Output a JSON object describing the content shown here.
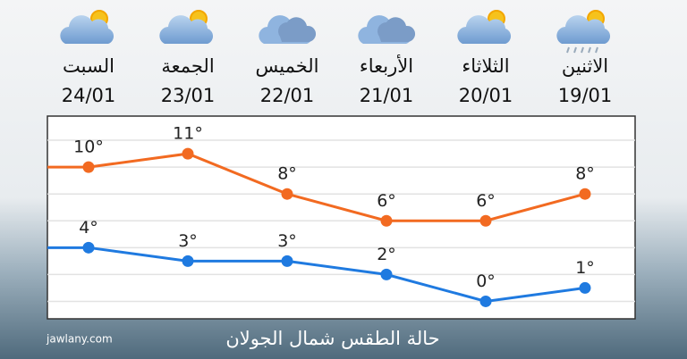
{
  "chart_data": {
    "type": "line",
    "title": "حالة الطقس شمال الجولان",
    "source": "jawlany.com",
    "categories": [
      "الاثنين",
      "الثلاثاء",
      "الأربعاء",
      "الخميس",
      "الجمعة",
      "السبت"
    ],
    "dates": [
      "19/01",
      "20/01",
      "21/01",
      "22/01",
      "23/01",
      "24/01"
    ],
    "series": [
      {
        "color": "#f26a21",
        "values": [
          8,
          6,
          6,
          8,
          11,
          10
        ],
        "value_labels": [
          "8°",
          "6°",
          "6°",
          "8°",
          "11°",
          "10°"
        ]
      },
      {
        "color": "#1f7ae0",
        "values": [
          1,
          0,
          2,
          3,
          3,
          4
        ],
        "value_labels": [
          "1°",
          "0°",
          "2°",
          "3°",
          "3°",
          "4°"
        ]
      }
    ],
    "ylim": [
      -1.3,
      13.8
    ],
    "yticks": [
      0,
      2,
      4,
      6,
      8,
      10,
      12
    ],
    "grid": true
  }
}
